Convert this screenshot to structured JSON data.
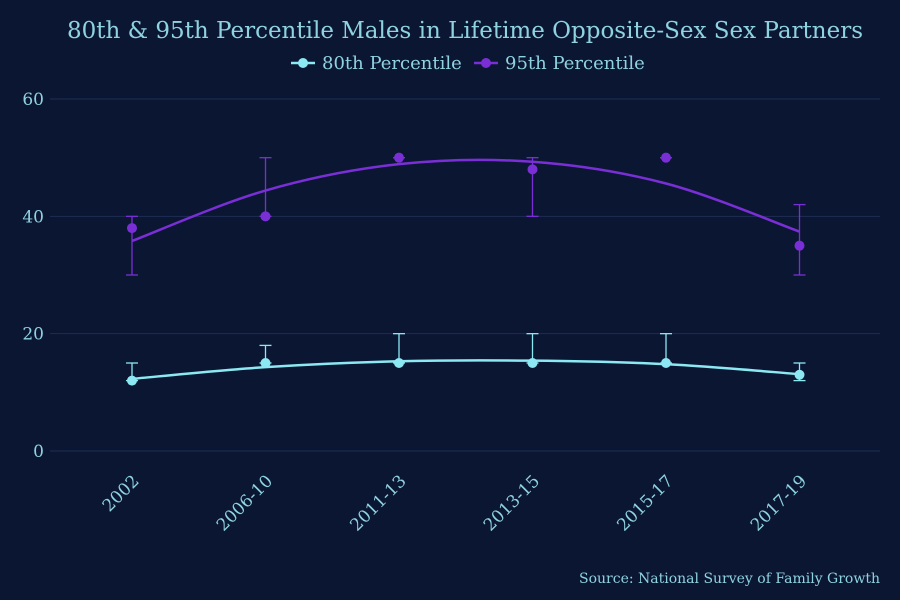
{
  "chart_data": {
    "type": "line",
    "title": "80th & 95th Percentile Males in Lifetime Opposite-Sex Sex Partners",
    "xlabel": "",
    "ylabel": "",
    "ylim": [
      0,
      60
    ],
    "yticks": [
      0,
      20,
      40,
      60
    ],
    "grid": true,
    "legend_position": "top-center",
    "categories": [
      "2002",
      "2006-10",
      "2011-13",
      "2013-15",
      "2015-17",
      "2017-19"
    ],
    "series": [
      {
        "name": "80th Percentile",
        "color": "#8ce8f2",
        "values": [
          12,
          15,
          15,
          15,
          15,
          13
        ],
        "error_upper": [
          15,
          18,
          20,
          20,
          20,
          15
        ],
        "error_lower": [
          12,
          15,
          15,
          15,
          15,
          12
        ],
        "trend": [
          12.3,
          14.3,
          15.3,
          15.4,
          14.8,
          13.1
        ]
      },
      {
        "name": "95th Percentile",
        "color": "#7a2fd6",
        "values": [
          38,
          40,
          50,
          48,
          50,
          35
        ],
        "error_upper": [
          40,
          50,
          50,
          50,
          50,
          42
        ],
        "error_lower": [
          30,
          40,
          50,
          40,
          50,
          30
        ],
        "trend": [
          35.8,
          44.4,
          48.9,
          49.3,
          45.6,
          37.4
        ]
      }
    ],
    "source_note": "Source: National Survey of Family Growth"
  }
}
